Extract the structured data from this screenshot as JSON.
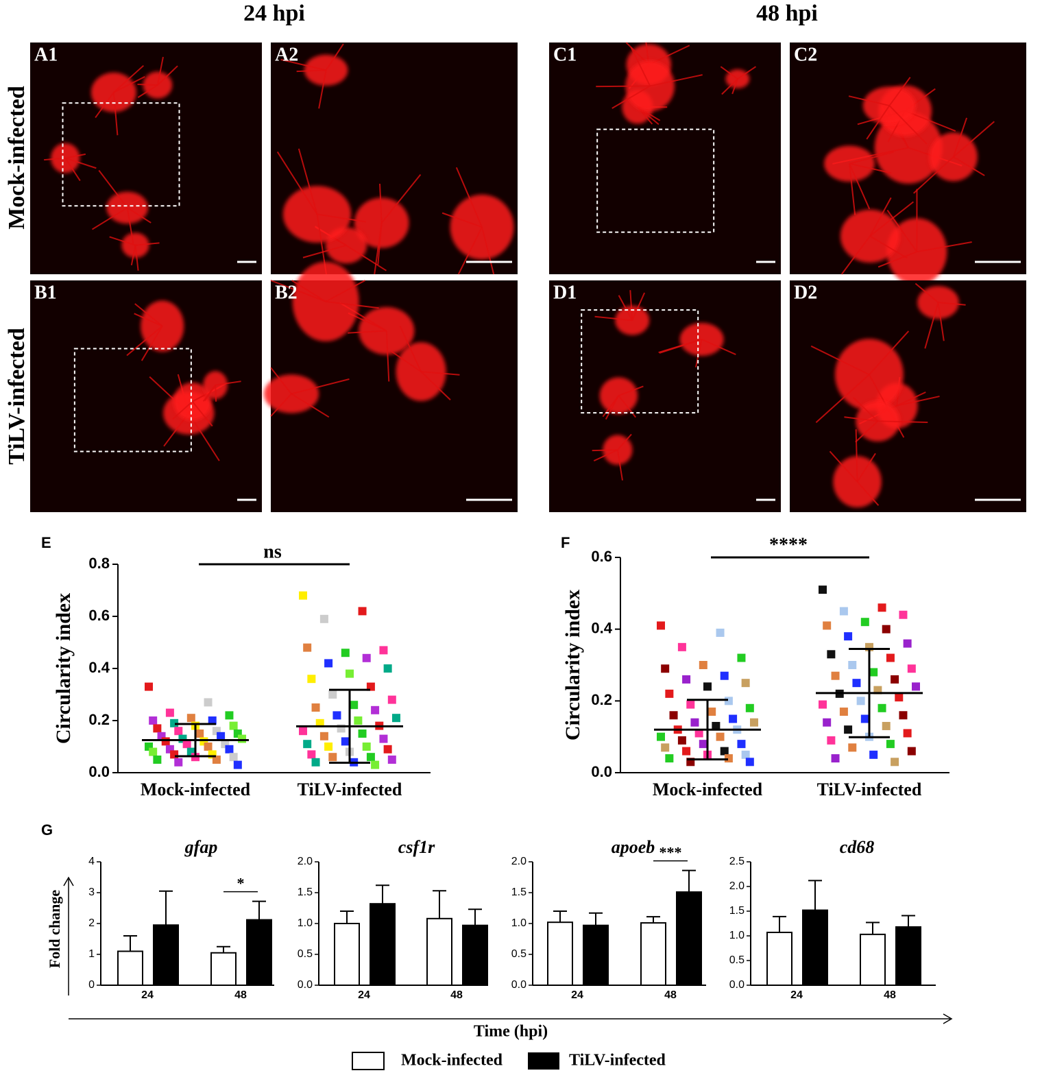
{
  "micrographs": {
    "column_titles": [
      "24 hpi",
      "48 hpi"
    ],
    "row_labels": [
      "Mock-infected",
      "TiLV-infected"
    ],
    "panels": [
      "A1",
      "A2",
      "C1",
      "C2",
      "B1",
      "B2",
      "D1",
      "D2"
    ]
  },
  "panel_g": {
    "label": "G",
    "ylabel": "Fold change",
    "xlabel": "Time (hpi)"
  },
  "chart_data": [
    {
      "type": "dotplot",
      "panel": "E",
      "ylabel": "Circularity index",
      "categories": [
        "Mock-infected",
        "TiLV-infected"
      ],
      "ylim": [
        0,
        0.8
      ],
      "yticks": [
        {
          "value": 0,
          "label": "0.0"
        },
        0.2,
        0.4,
        0.6,
        0.8
      ],
      "significance": "ns",
      "point_colors": [
        "#e31a1c",
        "#22cc22",
        "#1f2fff",
        "#ffee00",
        "#ff3399",
        "#b22fd6",
        "#77ee33",
        "#cccccc",
        "#e08040",
        "#00aa88"
      ],
      "groups": [
        {
          "values": [
            0.33,
            0.27,
            0.23,
            0.22,
            0.21,
            0.2,
            0.2,
            0.19,
            0.18,
            0.18,
            0.17,
            0.16,
            0.16,
            0.15,
            0.15,
            0.14,
            0.14,
            0.13,
            0.13,
            0.12,
            0.12,
            0.11,
            0.11,
            0.1,
            0.1,
            0.09,
            0.09,
            0.08,
            0.08,
            0.07,
            0.07,
            0.06,
            0.06,
            0.05,
            0.05,
            0.04,
            0.03
          ],
          "mean": 0.125,
          "sd": 0.062
        },
        {
          "values": [
            0.68,
            0.62,
            0.59,
            0.47,
            0.46,
            0.48,
            0.44,
            0.42,
            0.4,
            0.38,
            0.36,
            0.33,
            0.3,
            0.28,
            0.26,
            0.25,
            0.24,
            0.22,
            0.21,
            0.2,
            0.19,
            0.18,
            0.17,
            0.16,
            0.15,
            0.14,
            0.13,
            0.12,
            0.11,
            0.1,
            0.1,
            0.09,
            0.08,
            0.07,
            0.06,
            0.06,
            0.05,
            0.04,
            0.04,
            0.03
          ],
          "mean": 0.178,
          "sd": 0.14
        }
      ]
    },
    {
      "type": "dotplot",
      "panel": "F",
      "ylabel": "Circularity index",
      "categories": [
        "Mock-infected",
        "TiLV-infected"
      ],
      "ylim": [
        0,
        0.6
      ],
      "yticks": [
        {
          "value": 0,
          "label": "0.0"
        },
        0.2,
        0.4,
        0.6
      ],
      "significance": "****",
      "point_colors": [
        "#e31a1c",
        "#22cc22",
        "#1f2fff",
        "#111111",
        "#ff3399",
        "#8b0000",
        "#c8a060",
        "#aac8ee",
        "#e08040",
        "#9922cc"
      ],
      "groups": [
        {
          "values": [
            0.41,
            0.39,
            0.35,
            0.32,
            0.3,
            0.29,
            0.27,
            0.26,
            0.25,
            0.24,
            0.22,
            0.2,
            0.19,
            0.18,
            0.17,
            0.16,
            0.15,
            0.14,
            0.14,
            0.13,
            0.12,
            0.12,
            0.11,
            0.1,
            0.1,
            0.09,
            0.08,
            0.08,
            0.07,
            0.06,
            0.06,
            0.05,
            0.05,
            0.04,
            0.04,
            0.03,
            0.03
          ],
          "mean": 0.12,
          "sd": 0.083
        },
        {
          "values": [
            0.51,
            0.46,
            0.45,
            0.44,
            0.42,
            0.41,
            0.4,
            0.38,
            0.36,
            0.35,
            0.33,
            0.32,
            0.3,
            0.29,
            0.28,
            0.27,
            0.26,
            0.25,
            0.24,
            0.23,
            0.22,
            0.21,
            0.2,
            0.19,
            0.18,
            0.17,
            0.16,
            0.15,
            0.14,
            0.13,
            0.12,
            0.11,
            0.1,
            0.09,
            0.08,
            0.07,
            0.06,
            0.05,
            0.04,
            0.03
          ],
          "mean": 0.222,
          "sd": 0.123
        }
      ]
    },
    {
      "type": "bar",
      "title": "gfap",
      "categories": [
        "24",
        "48"
      ],
      "ylim": [
        0,
        4
      ],
      "yticks": [
        0,
        1,
        2,
        3,
        4
      ],
      "series": [
        {
          "name": "Mock-infected",
          "color": "#ffffff",
          "values": [
            1.1,
            1.05
          ],
          "errors": [
            0.5,
            0.2
          ]
        },
        {
          "name": "TiLV-infected",
          "color": "#000000",
          "values": [
            1.95,
            2.12
          ],
          "errors": [
            1.1,
            0.6
          ]
        }
      ],
      "annotations": [
        {
          "text": "*",
          "category": "48"
        }
      ]
    },
    {
      "type": "bar",
      "title": "csf1r",
      "categories": [
        "24",
        "48"
      ],
      "ylim": [
        0,
        2
      ],
      "yticks": [
        {
          "value": 0,
          "label": "0.0"
        },
        0.5,
        {
          "value": 1,
          "label": "1.0"
        },
        1.5,
        {
          "value": 2,
          "label": "2.0"
        }
      ],
      "series": [
        {
          "name": "Mock-infected",
          "color": "#ffffff",
          "values": [
            1.0,
            1.08
          ],
          "errors": [
            0.2,
            0.45
          ]
        },
        {
          "name": "TiLV-infected",
          "color": "#000000",
          "values": [
            1.32,
            0.97
          ],
          "errors": [
            0.3,
            0.26
          ]
        }
      ],
      "annotations": []
    },
    {
      "type": "bar",
      "title": "apoeb",
      "categories": [
        "24",
        "48"
      ],
      "ylim": [
        0,
        2
      ],
      "yticks": [
        {
          "value": 0,
          "label": "0.0"
        },
        0.5,
        {
          "value": 1,
          "label": "1.0"
        },
        1.5,
        {
          "value": 2,
          "label": "2.0"
        }
      ],
      "series": [
        {
          "name": "Mock-infected",
          "color": "#ffffff",
          "values": [
            1.02,
            1.01
          ],
          "errors": [
            0.18,
            0.1
          ]
        },
        {
          "name": "TiLV-infected",
          "color": "#000000",
          "values": [
            0.97,
            1.51
          ],
          "errors": [
            0.2,
            0.35
          ]
        }
      ],
      "annotations": [
        {
          "text": "***",
          "category": "48"
        }
      ]
    },
    {
      "type": "bar",
      "title": "cd68",
      "categories": [
        "24",
        "48"
      ],
      "ylim": [
        0,
        2.5
      ],
      "yticks": [
        {
          "value": 0,
          "label": "0.0"
        },
        0.5,
        {
          "value": 1,
          "label": "1.0"
        },
        1.5,
        {
          "value": 2,
          "label": "2.0"
        },
        2.5
      ],
      "series": [
        {
          "name": "Mock-infected",
          "color": "#ffffff",
          "values": [
            1.07,
            1.03
          ],
          "errors": [
            0.32,
            0.24
          ]
        },
        {
          "name": "TiLV-infected",
          "color": "#000000",
          "values": [
            1.52,
            1.18
          ],
          "errors": [
            0.6,
            0.23
          ]
        }
      ],
      "annotations": []
    }
  ]
}
